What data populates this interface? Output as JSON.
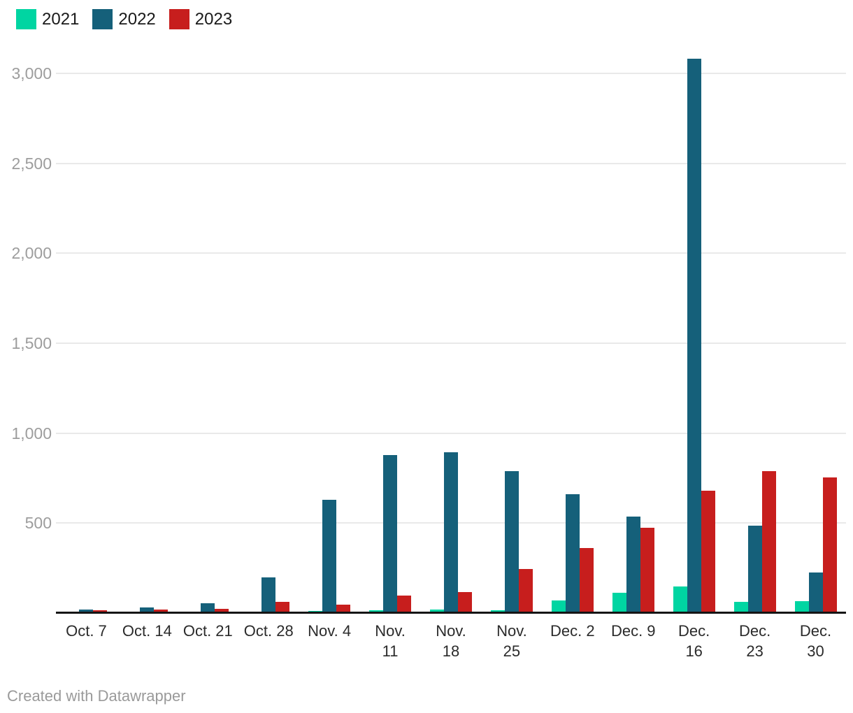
{
  "footer": {
    "text": "Created with Datawrapper"
  },
  "chart_data": {
    "type": "bar",
    "title": "",
    "categories": [
      "Oct. 7",
      "Oct. 14",
      "Oct. 21",
      "Oct. 28",
      "Nov. 4",
      "Nov. 11",
      "Nov. 18",
      "Nov. 25",
      "Dec. 2",
      "Dec. 9",
      "Dec. 16",
      "Dec. 23",
      "Dec. 30"
    ],
    "tick_labels": [
      "Oct. 7",
      "Oct. 14",
      "Oct. 21",
      "Oct. 28",
      "Nov. 4",
      "Nov.\n11",
      "Nov.\n18",
      "Nov.\n25",
      "Dec. 2",
      "Dec. 9",
      "Dec.\n16",
      "Dec.\n23",
      "Dec.\n30"
    ],
    "series": [
      {
        "name": "2021",
        "color": "#00d5a2",
        "values": [
          7,
          7,
          2,
          3,
          10,
          14,
          18,
          14,
          69,
          114,
          149,
          63,
          65
        ]
      },
      {
        "name": "2022",
        "color": "#15607a",
        "values": [
          20,
          30,
          53,
          200,
          630,
          880,
          893,
          790,
          662,
          537,
          3082,
          487,
          224
        ]
      },
      {
        "name": "2023",
        "color": "#c71e1d",
        "values": [
          15,
          18,
          22,
          63,
          46,
          97,
          117,
          245,
          360,
          473,
          680,
          790,
          755
        ]
      }
    ],
    "ylim": [
      0,
      3000
    ],
    "yticks": [
      500,
      1000,
      1500,
      2000,
      2500,
      3000
    ],
    "ytick_labels": [
      "500",
      "1,000",
      "1,500",
      "2,000",
      "2,500",
      "3,000"
    ],
    "grid": "horizontal",
    "legend_position": "top-left",
    "gridline_color": "#e9e9e9",
    "axis_line_color": "#151515",
    "ytick_color": "#9d9d9d",
    "xtick_color": "#2b2b2b"
  }
}
